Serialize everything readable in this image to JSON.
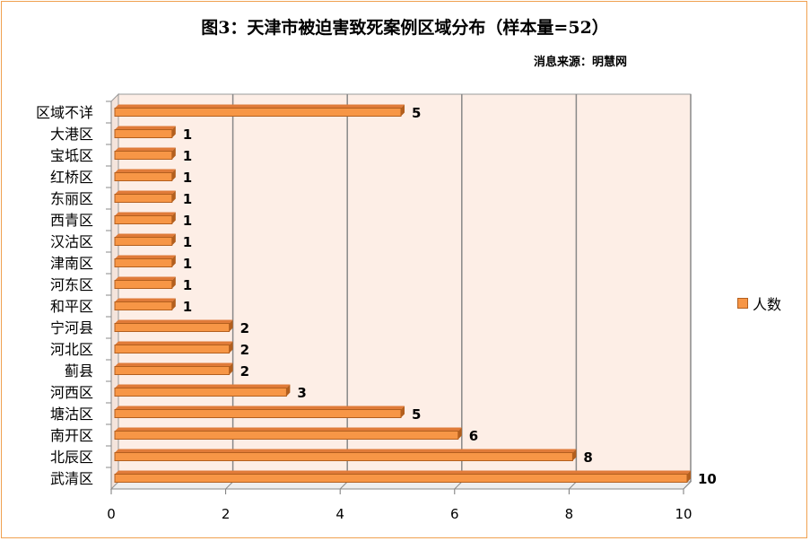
{
  "chart_data": {
    "type": "bar",
    "orientation": "horizontal",
    "title": "图3：天津市被迫害致死案例区域分布（样本量=52）",
    "subtitle": "消息来源：明慧网",
    "categories": [
      "区域不详",
      "大港区",
      "宝坻区",
      "红桥区",
      "东丽区",
      "西青区",
      "汉沽区",
      "津南区",
      "河东区",
      "和平区",
      "宁河县",
      "河北区",
      "蓟县",
      "河西区",
      "塘沽区",
      "南开区",
      "北辰区",
      "武清区"
    ],
    "series": [
      {
        "name": "人数",
        "values": [
          5,
          1,
          1,
          1,
          1,
          1,
          1,
          1,
          1,
          1,
          2,
          2,
          2,
          3,
          5,
          6,
          8,
          10
        ]
      }
    ],
    "xlim": [
      0,
      10
    ],
    "xticks": [
      "0",
      "2",
      "4",
      "6",
      "8",
      "10"
    ],
    "grid": true,
    "legend_position": "right",
    "colors": {
      "bar": "#f79646",
      "bar_dark": "#b35f1e",
      "back_wall": "#fdeee6",
      "grid": "#888888"
    }
  }
}
